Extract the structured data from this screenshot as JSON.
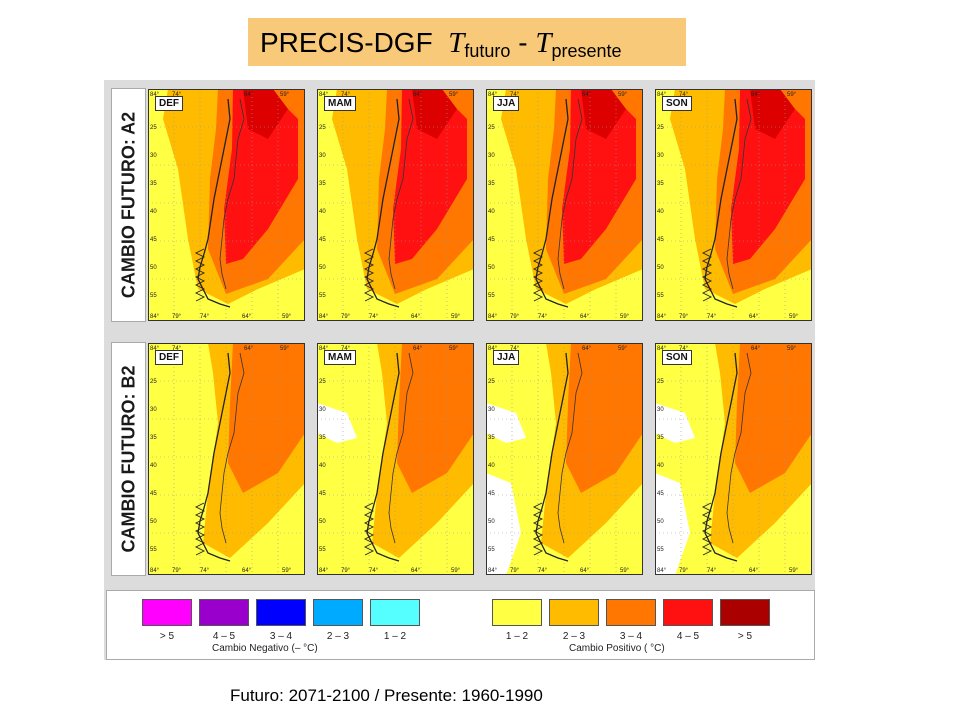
{
  "title": {
    "text": "PRECIS-DGF",
    "t1": "T",
    "sub1": "futuro",
    "minus": "-",
    "t2": "T",
    "sub2": "presente"
  },
  "rows": [
    {
      "label": "CAMBIO FUTURO: A2"
    },
    {
      "label": "CAMBIO FUTURO: B2"
    }
  ],
  "seasons": [
    "DEF",
    "MAM",
    "JJA",
    "SON"
  ],
  "axes": {
    "top_lon": [
      "84°",
      "74°",
      "64°",
      "59°"
    ],
    "bottom_lon": [
      "84°",
      "79°",
      "74°",
      "64°",
      "59°"
    ],
    "lat": [
      "25",
      "30",
      "35",
      "40",
      "45",
      "50",
      "55"
    ]
  },
  "legend": {
    "negative_title": "Cambio Negativo (– °C)",
    "positive_title": "Cambio Positivo ( °C)",
    "negative": [
      {
        "label": "> 5",
        "color": "#ff00ff"
      },
      {
        "label": "4 – 5",
        "color": "#9a00cc"
      },
      {
        "label": "3 – 4",
        "color": "#0000ff"
      },
      {
        "label": "2 – 3",
        "color": "#00aaff"
      },
      {
        "label": "1 – 2",
        "color": "#55ffff"
      }
    ],
    "positive": [
      {
        "label": "1 – 2",
        "color": "#ffff44"
      },
      {
        "label": "2 – 3",
        "color": "#ffbb00"
      },
      {
        "label": "3 – 4",
        "color": "#ff7700"
      },
      {
        "label": "4 – 5",
        "color": "#ff1111"
      },
      {
        "label": "> 5",
        "color": "#aa0000"
      }
    ]
  },
  "caption": "Futuro: 2071-2100 / Presente: 1960-1990"
}
